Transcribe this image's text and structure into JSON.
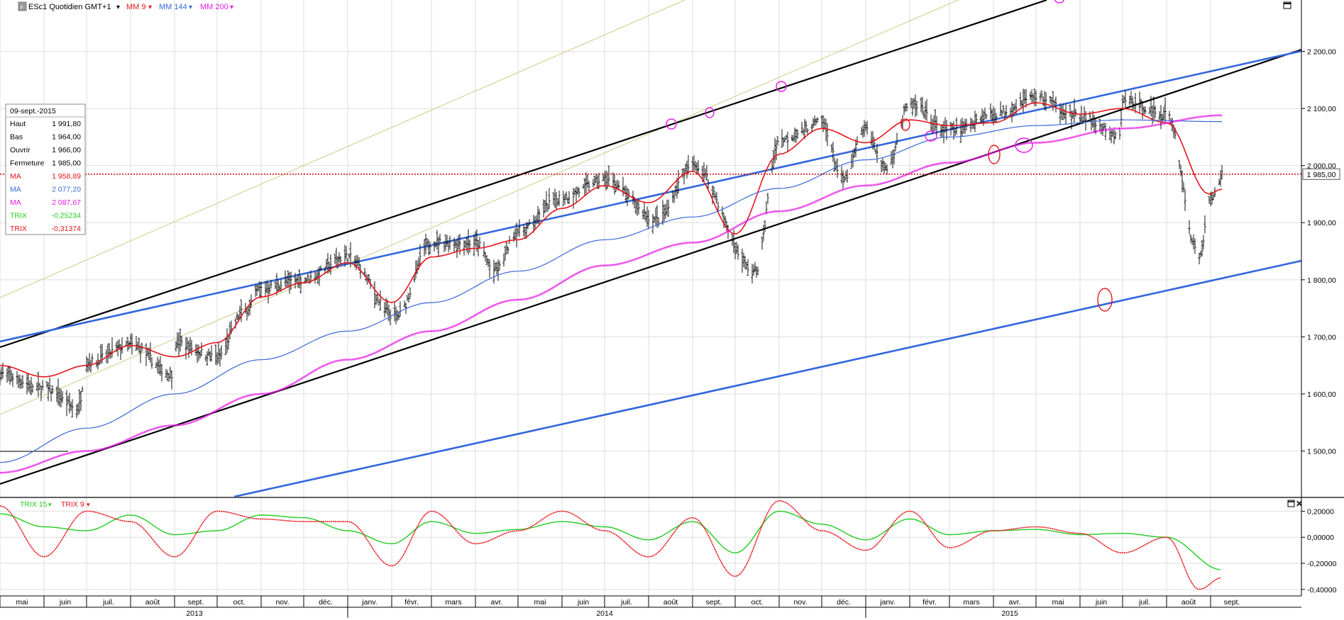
{
  "toolbar": {
    "instrument_label": "ESc1 Quotidien GMT+1",
    "indicator_1": "MM 9",
    "indicator_2": "MM 144",
    "indicator_3": "MM 200"
  },
  "lower_panel": {
    "indicator_1": "TRIX 15",
    "indicator_2": "TRIX 9"
  },
  "data_box": {
    "date": "09-sept.-2015",
    "rows": [
      {
        "label": "Haut",
        "value": "1 991,80",
        "color": "#000000"
      },
      {
        "label": "Bas",
        "value": "1 964,00",
        "color": "#000000"
      },
      {
        "label": "Ouvrir",
        "value": "1 966,00",
        "color": "#000000"
      },
      {
        "label": "Fermeture",
        "value": "1 985,00",
        "color": "#000000"
      },
      {
        "label": "MA",
        "value": "1 958,89",
        "color": "#e8141b"
      },
      {
        "label": "MA",
        "value": "2 077,20",
        "color": "#3a67d8"
      },
      {
        "label": "MA",
        "value": "2 087,67",
        "color": "#e619e6"
      },
      {
        "label": "TRIX",
        "value": "-0,25234",
        "color": "#22cc22"
      },
      {
        "label": "TRIX",
        "value": "-0,31374",
        "color": "#e8141b"
      }
    ]
  },
  "price_tag": "1 985,00",
  "colors": {
    "ma9": "#e8141b",
    "ma144": "#3a67d8",
    "ma200": "#e619e6",
    "trix15": "#22cc22",
    "trix9": "#e8141b",
    "channel": "#000000",
    "trendline": "#3366dd",
    "grid": "#d9d9d9"
  },
  "chart_data": [
    {
      "type": "line",
      "panel": "price",
      "ylim": [
        1420,
        2290
      ],
      "y_ticks": [
        "2 200,00",
        "2 100,00",
        "2 000,00",
        "1 900,00",
        "1 800,00",
        "1 700,00",
        "1 600,00",
        "1 500,00"
      ],
      "y_tick_values": [
        2200,
        2100,
        2000,
        1900,
        1800,
        1700,
        1600,
        1500
      ],
      "x_months": [
        "mai",
        "juin",
        "juil.",
        "août",
        "sept.",
        "oct.",
        "nov.",
        "déc.",
        "janv.",
        "févr.",
        "mars",
        "avr.",
        "mai",
        "juin",
        "juil.",
        "août",
        "sept.",
        "oct.",
        "nov.",
        "déc.",
        "janv.",
        "févr.",
        "mars",
        "avr.",
        "mai",
        "juin",
        "juil.",
        "août",
        "sept."
      ],
      "x_years": [
        "2013",
        "2014",
        "2015"
      ],
      "grid": true,
      "series": [
        {
          "name": "ESc1",
          "kind": "ohlc",
          "values": [
            [
              "2013-05",
              1635
            ],
            [
              "2013-06",
              1610
            ],
            [
              "2013-06-25",
              1575
            ],
            [
              "2013-07",
              1655
            ],
            [
              "2013-08",
              1685
            ],
            [
              "2013-08-30",
              1635
            ],
            [
              "2013-09",
              1690
            ],
            [
              "2013-10",
              1665
            ],
            [
              "2013-10-20",
              1745
            ],
            [
              "2013-11",
              1785
            ],
            [
              "2013-12",
              1800
            ],
            [
              "2013-12-31",
              1840
            ],
            [
              "2014-02-04",
              1735
            ],
            [
              "2014-03",
              1865
            ],
            [
              "2014-04",
              1865
            ],
            [
              "2014-04-15",
              1815
            ],
            [
              "2014-05",
              1885
            ],
            [
              "2014-06",
              1945
            ],
            [
              "2014-07",
              1975
            ],
            [
              "2014-08-07",
              1905
            ],
            [
              "2014-09",
              2000
            ],
            [
              "2014-10-15",
              1815
            ],
            [
              "2014-11",
              2045
            ],
            [
              "2014-12",
              2075
            ],
            [
              "2014-12-16",
              1975
            ],
            [
              "2015-01",
              2065
            ],
            [
              "2015-01-15",
              1995
            ],
            [
              "2015-02",
              2105
            ],
            [
              "2015-03",
              2060
            ],
            [
              "2015-04",
              2090
            ],
            [
              "2015-05",
              2120
            ],
            [
              "2015-06",
              2085
            ],
            [
              "2015-06-29",
              2050
            ],
            [
              "2015-07",
              2115
            ],
            [
              "2015-08",
              2090
            ],
            [
              "2015-08-24",
              1840
            ],
            [
              "2015-09",
              1940
            ],
            [
              "2015-09-09",
              1985
            ]
          ]
        },
        {
          "name": "MM 9",
          "values": [
            [
              "2013-05",
              1650
            ],
            [
              "2013-06",
              1630
            ],
            [
              "2013-07",
              1650
            ],
            [
              "2013-08",
              1685
            ],
            [
              "2013-09",
              1665
            ],
            [
              "2013-10",
              1690
            ],
            [
              "2013-11",
              1770
            ],
            [
              "2013-12",
              1795
            ],
            [
              "2014-01",
              1830
            ],
            [
              "2014-02",
              1760
            ],
            [
              "2014-03",
              1840
            ],
            [
              "2014-04",
              1855
            ],
            [
              "2014-05",
              1870
            ],
            [
              "2014-06",
              1925
            ],
            [
              "2014-07",
              1965
            ],
            [
              "2014-08",
              1935
            ],
            [
              "2014-09",
              1990
            ],
            [
              "2014-10",
              1880
            ],
            [
              "2014-11",
              2020
            ],
            [
              "2014-12",
              2065
            ],
            [
              "2015-01",
              2040
            ],
            [
              "2015-02",
              2080
            ],
            [
              "2015-03",
              2070
            ],
            [
              "2015-04",
              2075
            ],
            [
              "2015-05",
              2110
            ],
            [
              "2015-06",
              2090
            ],
            [
              "2015-07",
              2100
            ],
            [
              "2015-08",
              2075
            ],
            [
              "2015-08-31",
              1950
            ],
            [
              "2015-09-09",
              1959
            ]
          ]
        },
        {
          "name": "MM 144",
          "values": [
            [
              "2013-05",
              1480
            ],
            [
              "2013-07",
              1540
            ],
            [
              "2013-09",
              1600
            ],
            [
              "2013-11",
              1660
            ],
            [
              "2014-01",
              1710
            ],
            [
              "2014-03",
              1760
            ],
            [
              "2014-05",
              1815
            ],
            [
              "2014-07",
              1870
            ],
            [
              "2014-09",
              1910
            ],
            [
              "2014-11",
              1960
            ],
            [
              "2015-01",
              2010
            ],
            [
              "2015-03",
              2050
            ],
            [
              "2015-05",
              2070
            ],
            [
              "2015-07",
              2080
            ],
            [
              "2015-09-09",
              2077
            ]
          ]
        },
        {
          "name": "MM 200",
          "values": [
            [
              "2013-05",
              1462
            ],
            [
              "2013-07",
              1500
            ],
            [
              "2013-09",
              1545
            ],
            [
              "2013-11",
              1600
            ],
            [
              "2014-01",
              1660
            ],
            [
              "2014-03",
              1710
            ],
            [
              "2014-05",
              1765
            ],
            [
              "2014-07",
              1825
            ],
            [
              "2014-09",
              1865
            ],
            [
              "2014-11",
              1920
            ],
            [
              "2015-01",
              1965
            ],
            [
              "2015-03",
              2005
            ],
            [
              "2015-05",
              2040
            ],
            [
              "2015-07",
              2065
            ],
            [
              "2015-09-09",
              2088
            ]
          ]
        }
      ]
    },
    {
      "type": "line",
      "panel": "indicator",
      "ylim": [
        -0.45,
        0.3
      ],
      "y_ticks": [
        "0,20000",
        "0,00000",
        "-0,20000",
        "-0,40000"
      ],
      "y_tick_values": [
        0.2,
        0.0,
        -0.2,
        -0.4
      ],
      "grid": true,
      "series": [
        {
          "name": "TRIX 15",
          "values": [
            [
              "2013-05",
              0.18
            ],
            [
              "2013-06",
              0.08
            ],
            [
              "2013-07",
              0.05
            ],
            [
              "2013-08",
              0.17
            ],
            [
              "2013-09",
              0.02
            ],
            [
              "2013-10",
              0.05
            ],
            [
              "2013-11",
              0.17
            ],
            [
              "2013-12",
              0.15
            ],
            [
              "2014-01",
              0.05
            ],
            [
              "2014-02",
              -0.05
            ],
            [
              "2014-03",
              0.12
            ],
            [
              "2014-04",
              0.03
            ],
            [
              "2014-05",
              0.06
            ],
            [
              "2014-06",
              0.12
            ],
            [
              "2014-07",
              0.08
            ],
            [
              "2014-08",
              -0.02
            ],
            [
              "2014-09",
              0.12
            ],
            [
              "2014-10",
              -0.12
            ],
            [
              "2014-11",
              0.2
            ],
            [
              "2014-12",
              0.1
            ],
            [
              "2015-01",
              -0.02
            ],
            [
              "2015-02",
              0.14
            ],
            [
              "2015-03",
              0.02
            ],
            [
              "2015-04",
              0.05
            ],
            [
              "2015-05",
              0.06
            ],
            [
              "2015-06",
              0.02
            ],
            [
              "2015-07",
              0.03
            ],
            [
              "2015-08",
              0.0
            ],
            [
              "2015-09-09",
              -0.25
            ]
          ]
        },
        {
          "name": "TRIX 9",
          "values": [
            [
              "2013-05",
              0.24
            ],
            [
              "2013-06",
              -0.15
            ],
            [
              "2013-07",
              0.2
            ],
            [
              "2013-08",
              0.12
            ],
            [
              "2013-09",
              -0.15
            ],
            [
              "2013-10",
              0.2
            ],
            [
              "2013-11",
              0.14
            ],
            [
              "2013-12",
              0.12
            ],
            [
              "2014-01",
              0.12
            ],
            [
              "2014-02",
              -0.22
            ],
            [
              "2014-03",
              0.2
            ],
            [
              "2014-04",
              -0.05
            ],
            [
              "2014-05",
              0.05
            ],
            [
              "2014-06",
              0.2
            ],
            [
              "2014-07",
              0.05
            ],
            [
              "2014-08",
              -0.15
            ],
            [
              "2014-09",
              0.15
            ],
            [
              "2014-10",
              -0.3
            ],
            [
              "2014-11",
              0.28
            ],
            [
              "2014-12",
              0.05
            ],
            [
              "2015-01",
              -0.1
            ],
            [
              "2015-02",
              0.2
            ],
            [
              "2015-03",
              -0.08
            ],
            [
              "2015-04",
              0.05
            ],
            [
              "2015-05",
              0.08
            ],
            [
              "2015-06",
              0.03
            ],
            [
              "2015-07",
              -0.12
            ],
            [
              "2015-08",
              0.0
            ],
            [
              "2015-08-24",
              -0.4
            ],
            [
              "2015-09-09",
              -0.31
            ]
          ]
        }
      ]
    }
  ]
}
